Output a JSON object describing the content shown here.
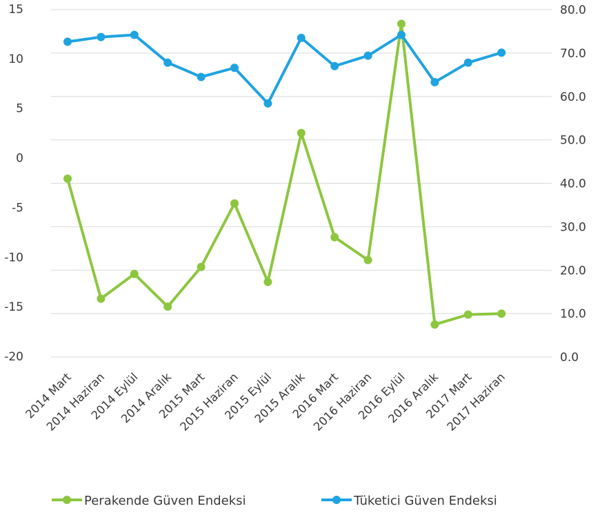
{
  "chart_data": {
    "type": "line",
    "categories": [
      "2014 Mart",
      "2014 Haziran",
      "2014 Eylül",
      "2014 Aralık",
      "2015 Mart",
      "2015 Haziran",
      "2015 Eylül",
      "2015 Aralık",
      "2016 Mart",
      "2016 Haziran",
      "2016 Eylül",
      "2016 Aralık",
      "2017 Mart",
      "2017 Haziran"
    ],
    "left_axis": {
      "min": -20,
      "max": 15,
      "ticks": [
        "15",
        "10",
        "5",
        "0",
        "-5",
        "-10",
        "-15",
        "-20"
      ]
    },
    "right_axis": {
      "min": 0,
      "max": 80,
      "ticks": [
        "80.0",
        "70.0",
        "60.0",
        "50.0",
        "40.0",
        "30.0",
        "20.0",
        "10.0",
        "0.0"
      ]
    },
    "grid": true,
    "legend_position": "bottom",
    "series": [
      {
        "name": "Perakende Güven Endeksi",
        "axis": "left",
        "color": "#8dc63f",
        "values": [
          -2.1,
          -14.2,
          -11.7,
          -15.0,
          -11.0,
          -4.6,
          -12.5,
          2.5,
          -8.0,
          -10.3,
          13.5,
          -16.8,
          -15.8,
          -15.7
        ]
      },
      {
        "name": "Tüketici Güven Endeksi",
        "axis": "right",
        "color": "#1fa3e0",
        "values": [
          72.6,
          73.7,
          74.2,
          67.8,
          64.5,
          66.6,
          58.4,
          73.5,
          67.0,
          69.4,
          74.2,
          63.3,
          67.8,
          70.1
        ]
      }
    ]
  }
}
